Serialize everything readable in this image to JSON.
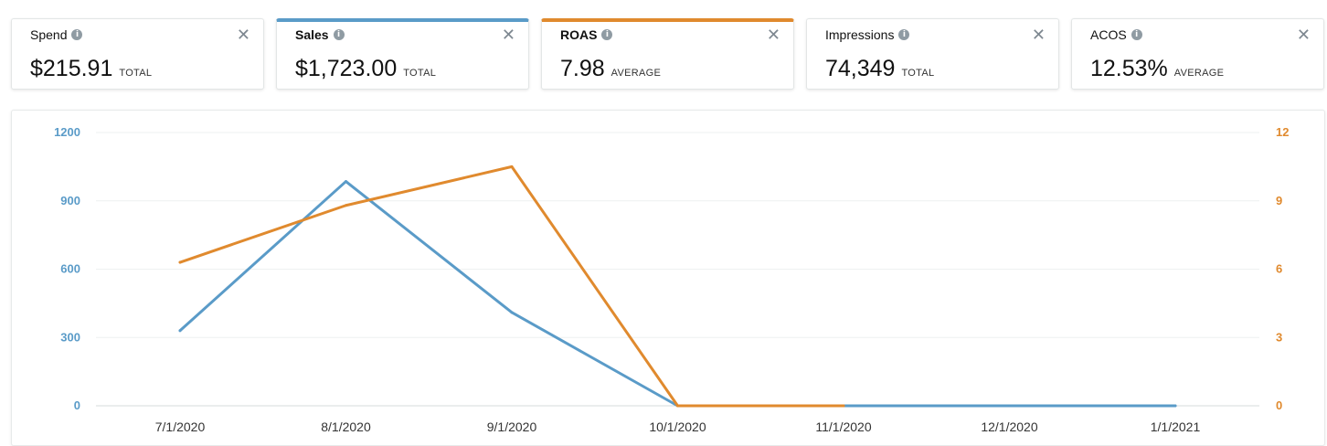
{
  "metrics": [
    {
      "name": "Spend",
      "value": "$215.91",
      "aggregation": "TOTAL",
      "selected": false,
      "accent": ""
    },
    {
      "name": "Sales",
      "value": "$1,723.00",
      "aggregation": "TOTAL",
      "selected": true,
      "accent": "#5a9bc8"
    },
    {
      "name": "ROAS",
      "value": "7.98",
      "aggregation": "AVERAGE",
      "selected": true,
      "accent": "#e08a2e"
    },
    {
      "name": "Impressions",
      "value": "74,349",
      "aggregation": "TOTAL",
      "selected": false,
      "accent": ""
    },
    {
      "name": "ACOS",
      "value": "12.53%",
      "aggregation": "AVERAGE",
      "selected": false,
      "accent": ""
    }
  ],
  "icons": {
    "info": "info-icon",
    "close": "close-icon",
    "close_glyph": "✕",
    "info_glyph": "i"
  },
  "chart_data": {
    "type": "line",
    "categories": [
      "7/1/2020",
      "8/1/2020",
      "9/1/2020",
      "10/1/2020",
      "11/1/2020",
      "12/1/2020",
      "1/1/2021"
    ],
    "series": [
      {
        "name": "Sales",
        "axis": "left",
        "color": "#5a9bc8",
        "values": [
          330,
          985,
          410,
          0,
          0,
          0,
          0
        ]
      },
      {
        "name": "ROAS",
        "axis": "right",
        "color": "#e08a2e",
        "values": [
          6.3,
          8.8,
          10.5,
          0,
          0,
          null,
          null
        ]
      }
    ],
    "y_left": {
      "ylim": [
        0,
        1200
      ],
      "ticks": [
        0,
        300,
        600,
        900,
        1200
      ],
      "color": "#5a9bc8"
    },
    "y_right": {
      "ylim": [
        0,
        12
      ],
      "ticks": [
        0,
        3,
        6,
        9,
        12
      ],
      "color": "#e08a2e"
    },
    "grid": true,
    "title": "",
    "xlabel": "",
    "ylabel": ""
  }
}
